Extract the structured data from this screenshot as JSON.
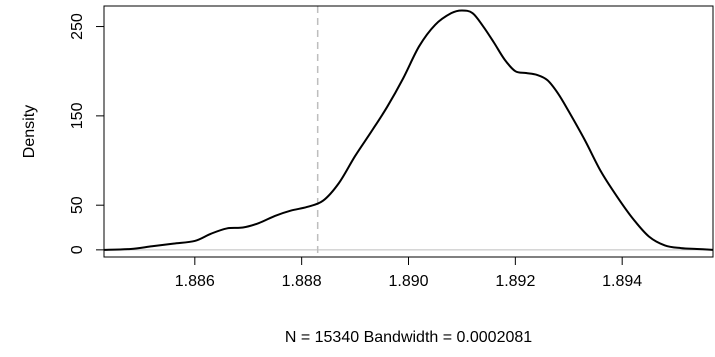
{
  "chart_data": {
    "type": "line",
    "title": "",
    "xlabel": "N = 15340   Bandwidth = 0.0002081",
    "ylabel": "Density",
    "xlim": [
      1.8843,
      1.8957
    ],
    "ylim": [
      -8,
      273
    ],
    "x_ticks": [
      1.886,
      1.888,
      1.89,
      1.892,
      1.894
    ],
    "x_tick_labels": [
      "1.886",
      "1.888",
      "1.890",
      "1.892",
      "1.894"
    ],
    "y_ticks": [
      0,
      50,
      150,
      250
    ],
    "y_tick_labels": [
      "0",
      "50",
      "150",
      "250"
    ],
    "reference_vline_x": 1.8883,
    "baseline_y": 0,
    "series": [
      {
        "x": [
          1.8843,
          1.8848,
          1.8852,
          1.8856,
          1.886,
          1.8863,
          1.8866,
          1.8869,
          1.8872,
          1.8875,
          1.8878,
          1.8881,
          1.8884,
          1.8887,
          1.889,
          1.8893,
          1.8896,
          1.8899,
          1.8902,
          1.8905,
          1.8908,
          1.891,
          1.8912,
          1.8914,
          1.8916,
          1.8918,
          1.892,
          1.8922,
          1.8924,
          1.8926,
          1.8928,
          1.893,
          1.8933,
          1.8936,
          1.8939,
          1.8942,
          1.8945,
          1.8948,
          1.8951,
          1.8954,
          1.8957
        ],
        "y": [
          0,
          1,
          4,
          7,
          10,
          18,
          24,
          25,
          30,
          38,
          44,
          48,
          55,
          75,
          105,
          132,
          160,
          192,
          228,
          252,
          265,
          268,
          265,
          250,
          232,
          213,
          200,
          198,
          196,
          190,
          175,
          155,
          123,
          88,
          60,
          35,
          15,
          5,
          2,
          1,
          0
        ]
      }
    ]
  }
}
